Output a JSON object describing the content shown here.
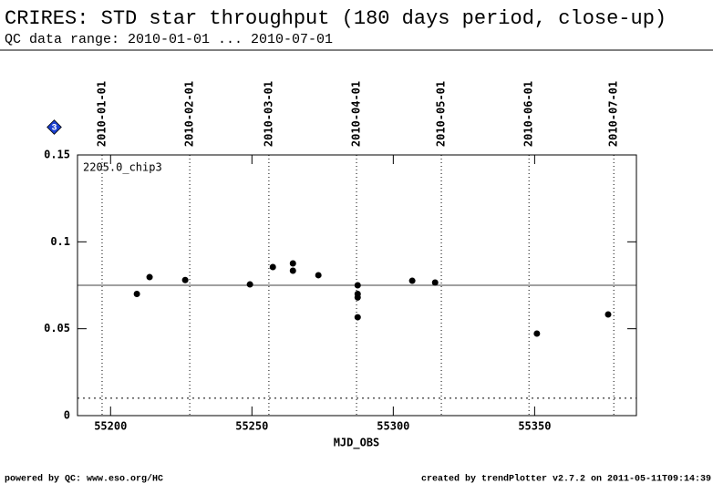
{
  "chart_data": {
    "type": "scatter",
    "title": "CRIRES: STD star throughput (180 days period, close-up)",
    "subtitle": "QC data range: 2010-01-01 ... 2010-07-01",
    "badge": "3",
    "panel_label": "2205.0_chip3",
    "xlabel": "MJD_OBS",
    "footer_left": "powered by QC: www.eso.org/HC",
    "footer_right": "created by trendPlotter v2.7.2 on 2011-05-11T09:14:39",
    "xlim": [
      55188.3,
      55386
    ],
    "ylim": [
      0,
      0.15
    ],
    "xticks": [
      55200,
      55250,
      55300,
      55350
    ],
    "yticks": [
      0,
      0.05,
      0.1,
      0.15
    ],
    "date_markers": [
      {
        "value": 55197,
        "label": "2010-01-01"
      },
      {
        "value": 55228,
        "label": "2010-02-01"
      },
      {
        "value": 55256,
        "label": "2010-03-01"
      },
      {
        "value": 55287,
        "label": "2010-04-01"
      },
      {
        "value": 55317,
        "label": "2010-05-01"
      },
      {
        "value": 55348,
        "label": "2010-06-01"
      },
      {
        "value": 55378,
        "label": "2010-07-01"
      }
    ],
    "mean_line": 0.075,
    "threshold_line": 0.01,
    "series": [
      {
        "color": "#000000",
        "x": [
          55209.3,
          55213.8,
          55226.4,
          55249.3,
          55257.4,
          55264.5,
          55264.5,
          55273.5,
          55287.4,
          55287.4,
          55287.4,
          55287.4,
          55306.7,
          55314.8,
          55350.8,
          55376
        ],
        "values": [
          0.07,
          0.0797,
          0.078,
          0.0755,
          0.0855,
          0.0876,
          0.0834,
          0.0808,
          0.075,
          0.07,
          0.068,
          0.0566,
          0.0776,
          0.0766,
          0.0472,
          0.0582
        ]
      }
    ]
  }
}
